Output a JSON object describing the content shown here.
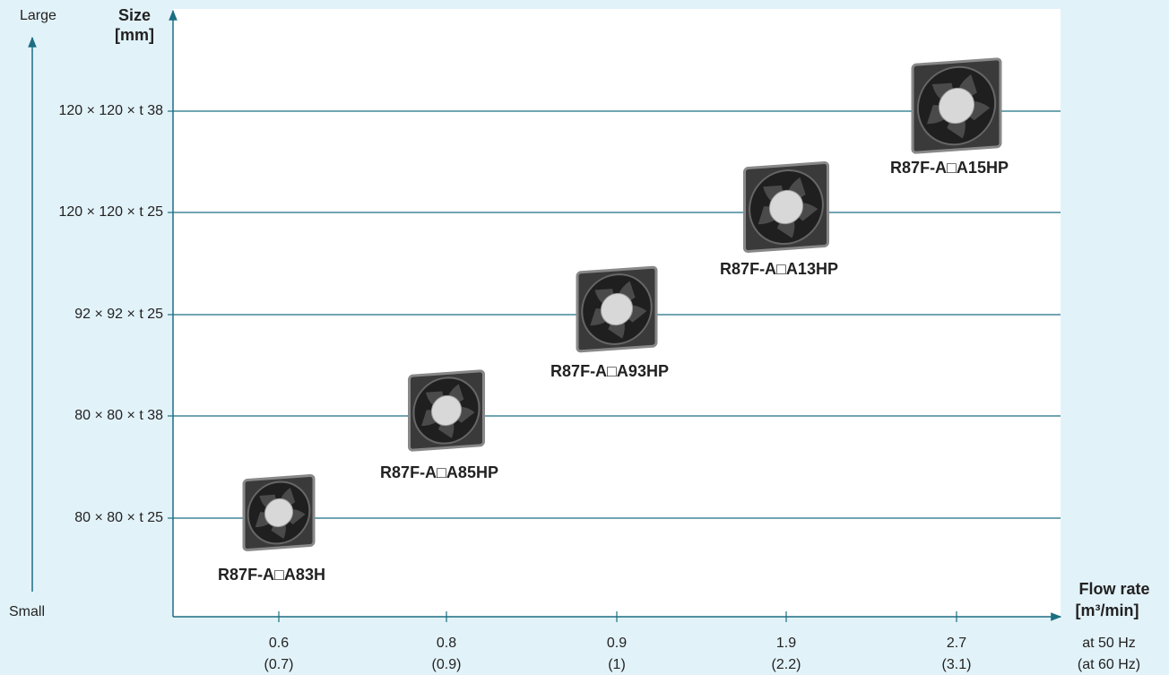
{
  "chart_data": {
    "type": "category-scatter",
    "y_top_label": "Large",
    "y_bottom_label": "Small",
    "y_title": "Size",
    "y_unit": "[mm]",
    "x_title": "Flow rate",
    "x_unit": "[m³/min]",
    "x_row_50hz": "at 50 Hz",
    "x_row_60hz": "(at 60 Hz)",
    "categories": [
      "0.6",
      "0.8",
      "0.9",
      "1.9",
      "2.7"
    ],
    "categories_60hz": [
      "(0.7)",
      "(0.9)",
      "(1)",
      "(2.2)",
      "(3.1)"
    ],
    "y_categories": [
      "80 × 80 × t 25",
      "80 × 80 × t 38",
      "92 × 92 × t 25",
      "120 × 120 × t 25",
      "120 × 120 × t 38"
    ],
    "points": [
      {
        "name": "R87F-A□A83H",
        "flow": "0.6",
        "size": "80 × 80 × t 25"
      },
      {
        "name": "R87F-A□A85HP",
        "flow": "0.8",
        "size": "80 × 80 × t 38"
      },
      {
        "name": "R87F-A□A93HP",
        "flow": "0.9",
        "size": "92 × 92 × t 25"
      },
      {
        "name": "R87F-A□A13HP",
        "flow": "1.9",
        "size": "120 × 120 × t 25"
      },
      {
        "name": "R87F-A□A15HP",
        "flow": "2.7",
        "size": "120 × 120 × t 38"
      }
    ]
  }
}
